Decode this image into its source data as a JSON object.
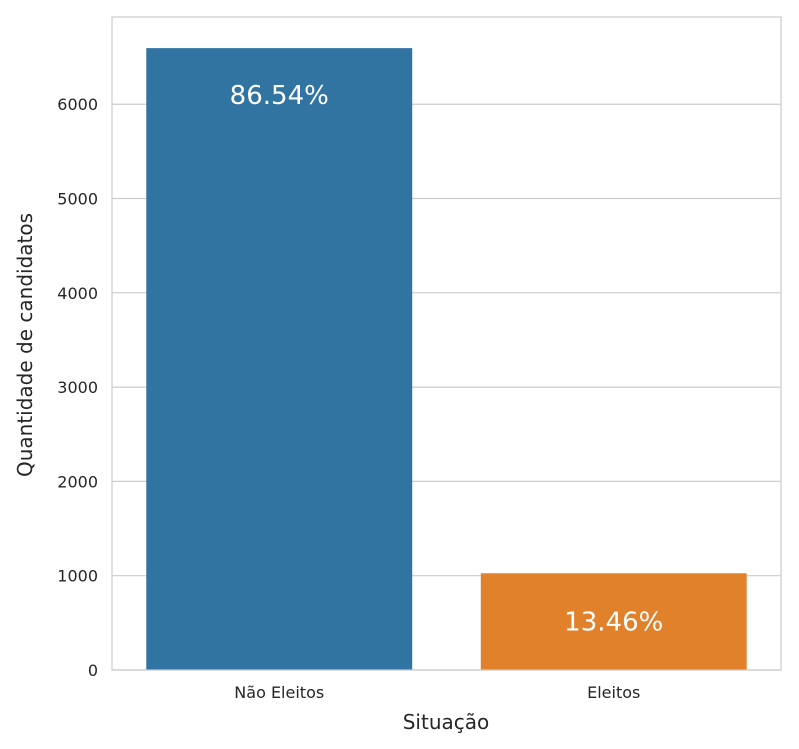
{
  "chart_data": {
    "type": "bar",
    "categories": [
      "Não Eleitos",
      "Eleitos"
    ],
    "values": [
      6595,
      1026
    ],
    "bar_labels": [
      "86.54%",
      "13.46%"
    ],
    "colors": [
      "#3274a1",
      "#e1812c"
    ],
    "xlabel": "Situação",
    "ylabel": "Quantidade de candidatos",
    "ylim": [
      0,
      6925
    ],
    "yticks": [
      0,
      1000,
      2000,
      3000,
      4000,
      5000,
      6000
    ],
    "grid": true,
    "legend": "none"
  }
}
